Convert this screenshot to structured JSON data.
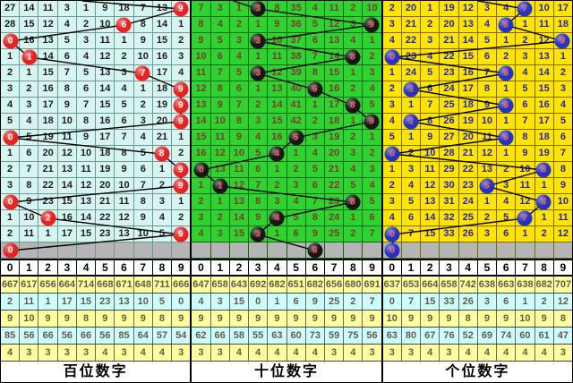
{
  "chart_data": {
    "type": "table",
    "columns": [
      "0",
      "1",
      "2",
      "3",
      "4",
      "5",
      "6",
      "7",
      "8",
      "9"
    ],
    "summary_row_bgs": [
      "#ffffa0",
      "#cdffff",
      "#ffffa0",
      "#cdffff",
      "#ffffa0"
    ],
    "gray_row_bg": "#b5b5b5",
    "line_color": "#000000",
    "panels": [
      {
        "id": "hundreds",
        "label": "百位数字",
        "theme": {
          "bg": "#d6f4f0",
          "grid": "#6e9898",
          "text": "#1c1c1c",
          "ball": "#e62321",
          "ball_text": "#ffffff"
        },
        "entry_from": [
          4.3,
          0
        ],
        "ball_sequence": [
          "9",
          "6",
          "0",
          "1",
          "7",
          "9",
          "9",
          "9",
          "0",
          "8",
          "9",
          "9",
          "0",
          "2",
          "9",
          "0"
        ],
        "rows": [
          {
            "ball": 9,
            "v": [
              "27",
              "14",
              "11",
              "3",
              "1",
              "9",
              "18",
              "7",
              "13",
              "9"
            ]
          },
          {
            "ball": 6,
            "v": [
              "28",
              "15",
              "12",
              "4",
              "2",
              "10",
              "6",
              "8",
              "14",
              "1"
            ]
          },
          {
            "ball": 0,
            "v": [
              "0",
              "16",
              "13",
              "5",
              "3",
              "11",
              "1",
              "9",
              "15",
              "2"
            ]
          },
          {
            "ball": 1,
            "v": [
              "1",
              "1",
              "14",
              "6",
              "4",
              "12",
              "2",
              "10",
              "16",
              "3"
            ]
          },
          {
            "ball": 7,
            "v": [
              "2",
              "1",
              "15",
              "7",
              "5",
              "13",
              "3",
              "7",
              "17",
              "4"
            ]
          },
          {
            "ball": 9,
            "v": [
              "3",
              "2",
              "16",
              "8",
              "6",
              "14",
              "4",
              "1",
              "18",
              "9"
            ]
          },
          {
            "ball": 9,
            "v": [
              "4",
              "3",
              "17",
              "9",
              "7",
              "15",
              "5",
              "2",
              "19",
              "9"
            ]
          },
          {
            "ball": 9,
            "v": [
              "5",
              "4",
              "18",
              "10",
              "8",
              "16",
              "6",
              "3",
              "20",
              "9"
            ]
          },
          {
            "ball": 0,
            "v": [
              "0",
              "5",
              "19",
              "11",
              "9",
              "17",
              "7",
              "4",
              "21",
              "1"
            ]
          },
          {
            "ball": 8,
            "v": [
              "1",
              "6",
              "20",
              "12",
              "10",
              "18",
              "8",
              "5",
              "8",
              "2"
            ]
          },
          {
            "ball": 9,
            "v": [
              "2",
              "7",
              "21",
              "13",
              "11",
              "19",
              "9",
              "6",
              "1",
              "9"
            ]
          },
          {
            "ball": 9,
            "v": [
              "3",
              "8",
              "22",
              "14",
              "12",
              "20",
              "10",
              "7",
              "2",
              "9"
            ]
          },
          {
            "ball": 0,
            "v": [
              "0",
              "9",
              "23",
              "15",
              "13",
              "21",
              "11",
              "8",
              "3",
              "1"
            ]
          },
          {
            "ball": 2,
            "v": [
              "1",
              "10",
              "2",
              "16",
              "14",
              "22",
              "12",
              "9",
              "4",
              "2"
            ]
          },
          {
            "ball": 9,
            "v": [
              "2",
              "11",
              "1",
              "17",
              "15",
              "23",
              "13",
              "10",
              "5",
              "9"
            ]
          }
        ],
        "tail_ball": {
          "col": 0,
          "value": "0"
        },
        "summary": [
          [
            "667",
            "617",
            "656",
            "664",
            "714",
            "668",
            "671",
            "648",
            "711",
            "666"
          ],
          [
            "2",
            "11",
            "1",
            "17",
            "15",
            "23",
            "13",
            "10",
            "5",
            "0"
          ],
          [
            "9",
            "10",
            "9",
            "9",
            "8",
            "9",
            "9",
            "9",
            "8",
            "9"
          ],
          [
            "85",
            "56",
            "66",
            "56",
            "66",
            "56",
            "85",
            "64",
            "57",
            "54"
          ],
          [
            "4",
            "3",
            "3",
            "3",
            "3",
            "4",
            "3",
            "4",
            "4",
            "3"
          ]
        ]
      },
      {
        "id": "tens",
        "label": "十位数字",
        "theme": {
          "bg": "#2fd32f",
          "grid": "#0c660c",
          "text": "#7c3b2e",
          "ball": "#161616",
          "ball_text": "#ff6058"
        },
        "entry_from": [
          2.2,
          0
        ],
        "ball_sequence": [
          "3",
          "9",
          "3",
          "8",
          "3",
          "6",
          "8",
          "9",
          "5",
          "4",
          "0",
          "1",
          "8",
          "4",
          "3",
          "6"
        ],
        "rows": [
          {
            "ball": 3,
            "v": [
              "7",
              "3",
              "1",
              "3",
              "8",
              "35",
              "4",
              "11",
              "2",
              "10"
            ]
          },
          {
            "ball": 9,
            "v": [
              "8",
              "4",
              "2",
              "1",
              "9",
              "36",
              "5",
              "12",
              "3",
              "9"
            ]
          },
          {
            "ball": 3,
            "v": [
              "9",
              "5",
              "3",
              "3",
              "10",
              "37",
              "6",
              "13",
              "4",
              "1"
            ]
          },
          {
            "ball": 8,
            "v": [
              "10",
              "6",
              "4",
              "1",
              "11",
              "38",
              "7",
              "14",
              "8",
              "2"
            ]
          },
          {
            "ball": 3,
            "v": [
              "11",
              "7",
              "5",
              "3",
              "12",
              "39",
              "8",
              "15",
              "1",
              "3"
            ]
          },
          {
            "ball": 6,
            "v": [
              "12",
              "8",
              "6",
              "1",
              "13",
              "40",
              "6",
              "16",
              "2",
              "4"
            ]
          },
          {
            "ball": 8,
            "v": [
              "13",
              "9",
              "7",
              "2",
              "14",
              "41",
              "1",
              "17",
              "8",
              "5"
            ]
          },
          {
            "ball": 9,
            "v": [
              "14",
              "10",
              "8",
              "3",
              "15",
              "42",
              "2",
              "18",
              "1",
              "9"
            ]
          },
          {
            "ball": 5,
            "v": [
              "15",
              "11",
              "9",
              "4",
              "16",
              "5",
              "3",
              "19",
              "2",
              "1"
            ]
          },
          {
            "ball": 4,
            "v": [
              "16",
              "12",
              "10",
              "5",
              "4",
              "1",
              "4",
              "20",
              "3",
              "2"
            ]
          },
          {
            "ball": 0,
            "v": [
              "0",
              "13",
              "11",
              "6",
              "1",
              "2",
              "5",
              "21",
              "4",
              "3"
            ]
          },
          {
            "ball": 1,
            "v": [
              "1",
              "1",
              "12",
              "7",
              "2",
              "3",
              "6",
              "22",
              "5",
              "4"
            ]
          },
          {
            "ball": 8,
            "v": [
              "2",
              "1",
              "13",
              "8",
              "3",
              "4",
              "7",
              "23",
              "8",
              "5"
            ]
          },
          {
            "ball": 4,
            "v": [
              "3",
              "2",
              "14",
              "9",
              "4",
              "5",
              "8",
              "24",
              "1",
              "6"
            ]
          },
          {
            "ball": 3,
            "v": [
              "4",
              "3",
              "15",
              "3",
              "1",
              "6",
              "9",
              "25",
              "2",
              "7"
            ]
          }
        ],
        "tail_ball": {
          "col": 6,
          "value": "6"
        },
        "summary": [
          [
            "647",
            "658",
            "643",
            "692",
            "682",
            "651",
            "682",
            "656",
            "680",
            "691"
          ],
          [
            "4",
            "3",
            "15",
            "0",
            "1",
            "6",
            "9",
            "25",
            "2",
            "7"
          ],
          [
            "9",
            "9",
            "9",
            "9",
            "9",
            "9",
            "9",
            "9",
            "9",
            "9"
          ],
          [
            "62",
            "66",
            "58",
            "55",
            "63",
            "60",
            "73",
            "59",
            "75",
            "56"
          ],
          [
            "3",
            "3",
            "4",
            "4",
            "4",
            "4",
            "4",
            "3",
            "4",
            "3"
          ]
        ]
      },
      {
        "id": "units",
        "label": "个位数字",
        "theme": {
          "bg": "#ffe400",
          "grid": "#7a6b00",
          "text": "#2424b8",
          "ball": "#2433c2",
          "ball_text": "#ff5f58"
        },
        "entry_from": [
          5.0,
          0
        ],
        "ball_sequence": [
          "7",
          "6",
          "9",
          "0",
          "6",
          "1",
          "6",
          "1",
          "6",
          "0",
          "8",
          "5",
          "8",
          "7",
          "0",
          "0"
        ],
        "rows": [
          {
            "ball": 7,
            "v": [
              "2",
              "20",
              "1",
              "19",
              "12",
              "3",
              "4",
              "7",
              "10",
              "17"
            ]
          },
          {
            "ball": 6,
            "v": [
              "3",
              "21",
              "2",
              "20",
              "13",
              "4",
              "6",
              "1",
              "11",
              "18"
            ]
          },
          {
            "ball": 9,
            "v": [
              "4",
              "22",
              "3",
              "21",
              "14",
              "5",
              "1",
              "2",
              "12",
              "9"
            ]
          },
          {
            "ball": 0,
            "v": [
              "0",
              "23",
              "4",
              "22",
              "15",
              "6",
              "2",
              "3",
              "13",
              "1"
            ]
          },
          {
            "ball": 6,
            "v": [
              "1",
              "24",
              "5",
              "23",
              "16",
              "7",
              "6",
              "4",
              "14",
              "2"
            ]
          },
          {
            "ball": 1,
            "v": [
              "2",
              "1",
              "6",
              "24",
              "17",
              "8",
              "1",
              "5",
              "15",
              "3"
            ]
          },
          {
            "ball": 6,
            "v": [
              "3",
              "1",
              "7",
              "25",
              "18",
              "9",
              "6",
              "6",
              "16",
              "4"
            ]
          },
          {
            "ball": 1,
            "v": [
              "4",
              "1",
              "8",
              "26",
              "19",
              "10",
              "1",
              "7",
              "17",
              "5"
            ]
          },
          {
            "ball": 6,
            "v": [
              "5",
              "1",
              "9",
              "27",
              "20",
              "11",
              "6",
              "8",
              "18",
              "6"
            ]
          },
          {
            "ball": 0,
            "v": [
              "0",
              "2",
              "10",
              "28",
              "21",
              "12",
              "1",
              "9",
              "19",
              "7"
            ]
          },
          {
            "ball": 8,
            "v": [
              "1",
              "3",
              "11",
              "29",
              "22",
              "13",
              "2",
              "10",
              "8",
              "8"
            ]
          },
          {
            "ball": 5,
            "v": [
              "2",
              "4",
              "12",
              "30",
              "23",
              "5",
              "3",
              "11",
              "1",
              "9"
            ]
          },
          {
            "ball": 8,
            "v": [
              "3",
              "5",
              "13",
              "31",
              "24",
              "1",
              "4",
              "12",
              "8",
              "10"
            ]
          },
          {
            "ball": 7,
            "v": [
              "4",
              "6",
              "14",
              "32",
              "25",
              "2",
              "5",
              "7",
              "1",
              "11"
            ]
          },
          {
            "ball": 0,
            "v": [
              "0",
              "7",
              "15",
              "33",
              "26",
              "3",
              "6",
              "1",
              "2",
              "12"
            ]
          }
        ],
        "tail_ball": {
          "col": 0,
          "value": "0"
        },
        "summary": [
          [
            "637",
            "653",
            "664",
            "658",
            "742",
            "638",
            "663",
            "638",
            "682",
            "707"
          ],
          [
            "0",
            "7",
            "15",
            "33",
            "26",
            "3",
            "6",
            "1",
            "2",
            "12"
          ],
          [
            "10",
            "9",
            "9",
            "9",
            "8",
            "9",
            "9",
            "10",
            "9",
            "8"
          ],
          [
            "63",
            "80",
            "67",
            "76",
            "52",
            "69",
            "74",
            "60",
            "61",
            "47"
          ],
          [
            "3",
            "3",
            "4",
            "3",
            "4",
            "4",
            "4",
            "4",
            "4",
            "3"
          ]
        ]
      }
    ]
  }
}
